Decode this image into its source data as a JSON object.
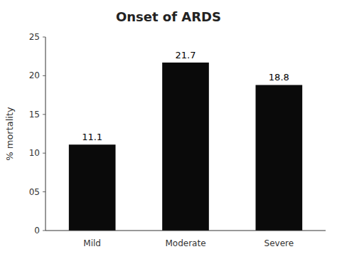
{
  "chart_data": {
    "type": "bar",
    "title": "Onset of ARDS",
    "ylabel": "% mortality",
    "categories": [
      "Mild",
      "Moderate",
      "Severe"
    ],
    "values": [
      11.1,
      21.7,
      18.8
    ],
    "color": "#0a0a0a",
    "ylim": [
      0,
      25
    ],
    "yticks": [
      0,
      {
        "value": 5,
        "label": "05"
      },
      10,
      15,
      20,
      25
    ],
    "grid": false,
    "data_labels": true
  }
}
